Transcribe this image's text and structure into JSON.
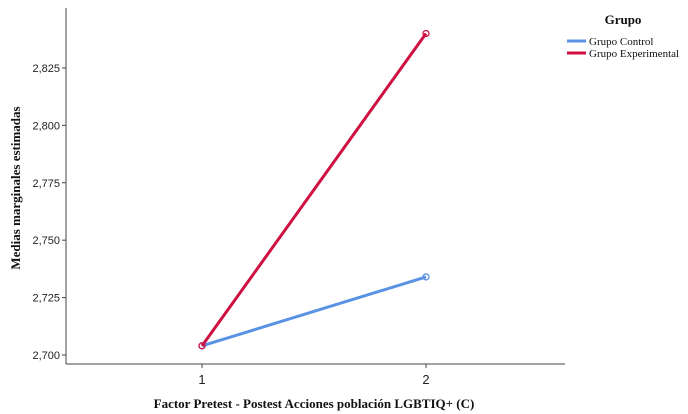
{
  "chart_data": {
    "type": "line",
    "categories": [
      "1",
      "2"
    ],
    "series": [
      {
        "name": "Grupo Control",
        "values": [
          2.704,
          2.734
        ],
        "color": "#5a93e3"
      },
      {
        "name": "Grupo Experimental",
        "values": [
          2.704,
          2.84
        ],
        "color": "#cf1142"
      }
    ],
    "yticks": [
      2.7,
      2.725,
      2.75,
      2.775,
      2.8,
      2.825
    ],
    "ytick_labels": [
      "2,700",
      "2,725",
      "2,750",
      "2,775",
      "2,800",
      "2,825"
    ],
    "ylim": [
      2.7,
      2.845
    ],
    "xlabel": "Factor Pretest - Postest Acciones población LGBTIQ+ (C)",
    "ylabel": "Medias marginales estimadas",
    "legend_title": "Grupo",
    "legend_position": "top-right",
    "grid": false
  }
}
